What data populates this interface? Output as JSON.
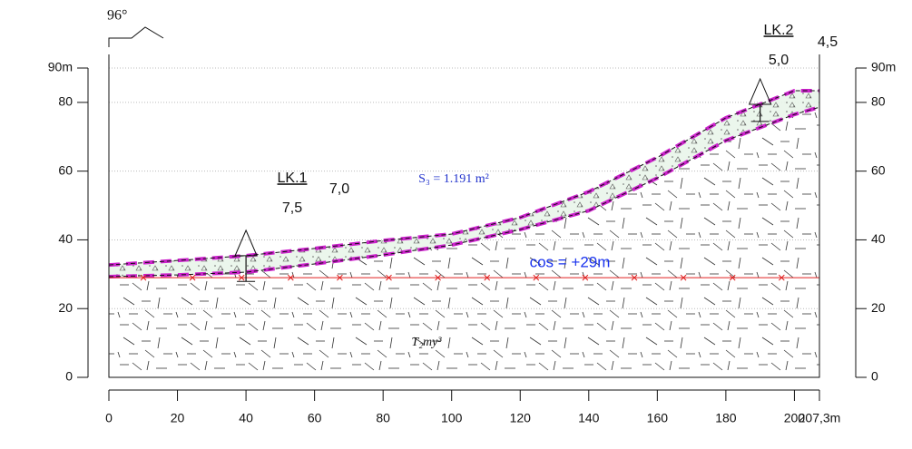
{
  "chart_data": {
    "type": "profile",
    "xlim": [
      0,
      207.3
    ],
    "ylim": [
      0,
      90
    ],
    "xticks": [
      0,
      20,
      40,
      60,
      80,
      100,
      120,
      140,
      160,
      180,
      200,
      {
        "value": 207.3,
        "label": "207,3m"
      }
    ],
    "yticks": [
      0,
      20,
      40,
      60,
      80,
      {
        "value": 90,
        "label": "90m"
      }
    ],
    "grid": true,
    "x": [
      0,
      20,
      40,
      60,
      80,
      100,
      120,
      140,
      160,
      180,
      200,
      207.3
    ],
    "surface": [
      32.7,
      34,
      35.4,
      37.5,
      39.8,
      41.7,
      46.5,
      54,
      64,
      75.5,
      83.4,
      83.4
    ],
    "layer_bottom": [
      29.3,
      29.8,
      30.6,
      33,
      35.6,
      38.5,
      43,
      48.5,
      58,
      68.9,
      76.5,
      78.6
    ],
    "layer_color": "#e9f5ea",
    "boundary_color": "#cc22cc",
    "water_level": {
      "value": 29,
      "label": "cos = +29m",
      "color": "#e02020"
    },
    "area_label": "S₃ = 1.191 m²",
    "rock_label": "T₂my³",
    "angle_label": "96°",
    "boreholes": [
      {
        "name": "LK.1",
        "x": 40,
        "depth": {
          "value": 7.5,
          "label": "7,5"
        },
        "note": "7,0"
      },
      {
        "name": "LK.2",
        "x": 190,
        "depth": {
          "value": 5.0,
          "label": "5,0"
        },
        "note": "4,5"
      }
    ]
  }
}
